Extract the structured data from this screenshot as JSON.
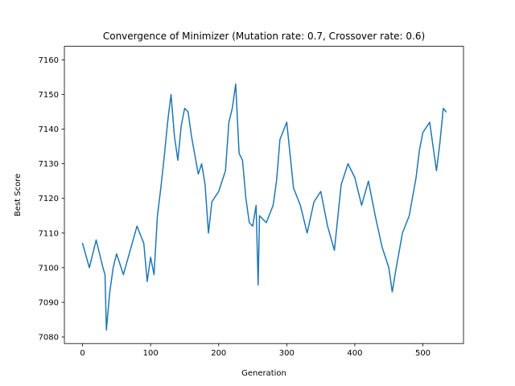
{
  "chart_data": {
    "type": "line",
    "title": "Convergence of Minimizer (Mutation rate: 0.7, Crossover rate: 0.6)",
    "xlabel": "Generation",
    "ylabel": "Best Score",
    "xlim": [
      -26.7,
      559.7
    ],
    "ylim": [
      7078.1,
      7163.9
    ],
    "xticks": [
      0,
      100,
      200,
      300,
      400,
      500
    ],
    "yticks": [
      7080,
      7090,
      7100,
      7110,
      7120,
      7130,
      7140,
      7150,
      7160
    ],
    "grid": false,
    "legend": "none",
    "color": "#1f77b4",
    "series": [
      {
        "x": [
          0,
          10,
          20,
          25,
          30,
          33,
          35,
          40,
          45,
          50,
          60,
          70,
          80,
          90,
          95,
          100,
          105,
          110,
          115,
          120,
          125,
          130,
          135,
          140,
          145,
          150,
          155,
          160,
          170,
          175,
          180,
          185,
          190,
          200,
          210,
          215,
          220,
          225,
          230,
          235,
          240,
          245,
          250,
          255,
          258,
          260,
          270,
          280,
          285,
          290,
          300,
          310,
          320,
          330,
          340,
          350,
          360,
          370,
          380,
          390,
          400,
          410,
          420,
          430,
          440,
          450,
          455,
          460,
          470,
          480,
          490,
          495,
          500,
          510,
          515,
          520,
          525,
          530,
          534
        ],
        "y": [
          7107,
          7100,
          7108,
          7104,
          7100,
          7098,
          7082,
          7093,
          7100,
          7104,
          7098,
          7105,
          7112,
          7107,
          7096,
          7103,
          7098,
          7115,
          7123,
          7132,
          7142,
          7150,
          7138,
          7131,
          7141,
          7146,
          7145,
          7138,
          7127,
          7130,
          7124,
          7110,
          7119,
          7122,
          7128,
          7142,
          7146,
          7153,
          7133,
          7131,
          7120,
          7113,
          7112,
          7118,
          7095,
          7115,
          7113,
          7118,
          7125,
          7137,
          7142,
          7123,
          7118,
          7110,
          7119,
          7122,
          7112,
          7105,
          7124,
          7130,
          7126,
          7118,
          7125,
          7115,
          7106,
          7100,
          7093,
          7099,
          7110,
          7115,
          7126,
          7134,
          7139,
          7142,
          7135,
          7128,
          7136,
          7146,
          7145
        ]
      }
    ]
  }
}
